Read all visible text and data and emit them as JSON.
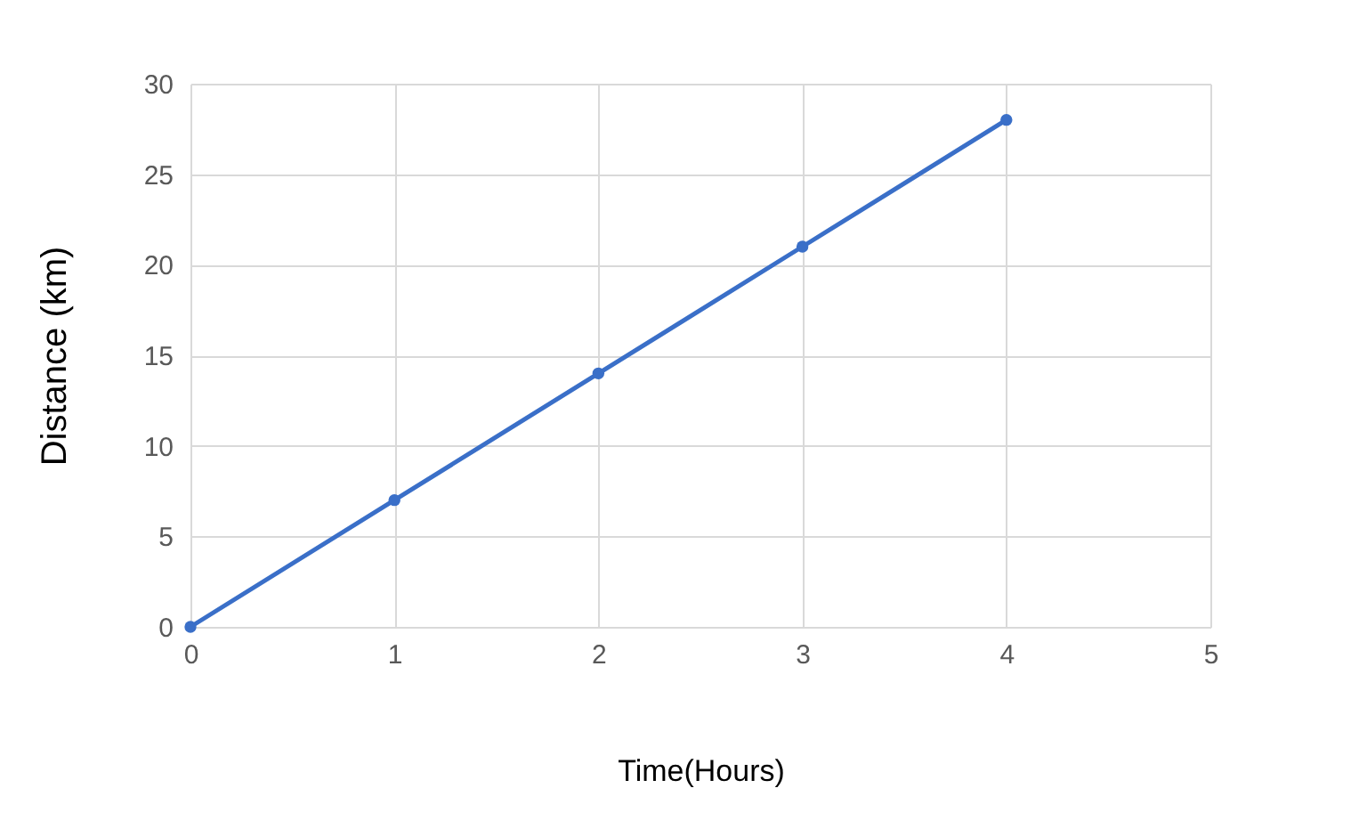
{
  "chart_data": {
    "type": "line",
    "xlabel": "Time(Hours)",
    "ylabel": "Distance (km)",
    "x": [
      0,
      1,
      2,
      3,
      4
    ],
    "series": [
      {
        "color": "#3a6fc8",
        "values": [
          0,
          7,
          14,
          21,
          28
        ]
      }
    ],
    "xlim": [
      0,
      5
    ],
    "xticks": [
      0,
      1,
      2,
      3,
      4,
      5
    ],
    "ylim": [
      0,
      30
    ],
    "yticks": [
      0,
      5,
      10,
      15,
      20,
      25,
      30
    ],
    "grid": true,
    "marker": "circle",
    "line_style": "solid"
  }
}
